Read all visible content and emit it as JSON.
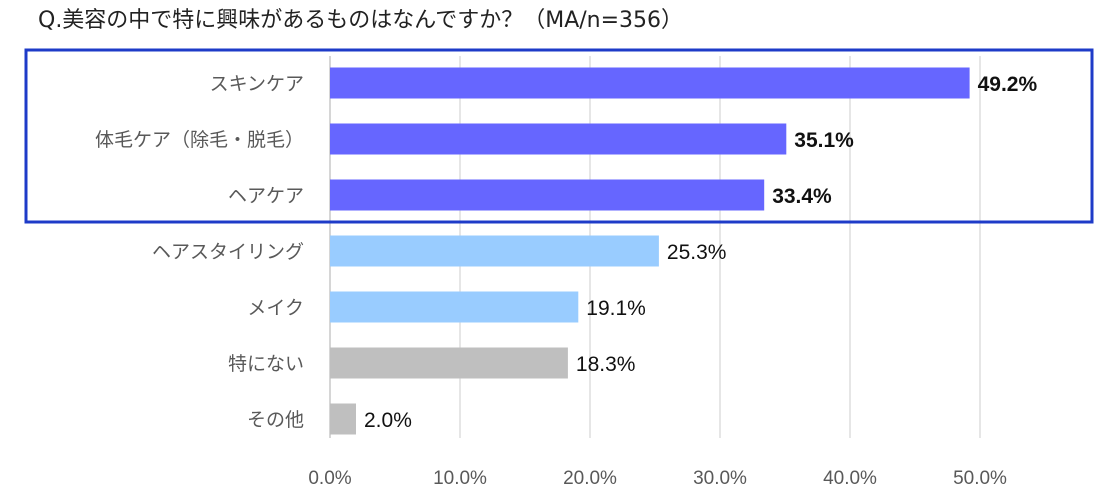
{
  "chart_data": {
    "type": "bar",
    "orientation": "horizontal",
    "title": "Q.美容の中で特に興味があるものはなんですか？（MA/n=356）",
    "categories": [
      "スキンケア",
      "体毛ケア（除毛・脱毛）",
      "ヘアケア",
      "ヘアスタイリング",
      "メイク",
      "特にない",
      "その他"
    ],
    "values": [
      49.2,
      35.1,
      33.4,
      25.3,
      19.1,
      18.3,
      2.0
    ],
    "value_labels": [
      "49.2%",
      "35.1%",
      "33.4%",
      "25.3%",
      "19.1%",
      "18.3%",
      "2.0%"
    ],
    "bar_colors": [
      "#6666ff",
      "#6666ff",
      "#6666ff",
      "#99ccff",
      "#99ccff",
      "#bfbfbf",
      "#bfbfbf"
    ],
    "bold_labels": [
      true,
      true,
      true,
      false,
      false,
      false,
      false
    ],
    "xlim": [
      0,
      50
    ],
    "x_ticks": [
      0,
      10,
      20,
      30,
      40,
      50
    ],
    "x_tick_labels": [
      "0.0%",
      "10.0%",
      "20.0%",
      "30.0%",
      "40.0%",
      "50.0%"
    ],
    "grid": "vertical",
    "highlight": {
      "categories": [
        "スキンケア",
        "体毛ケア（除毛・脱毛）",
        "ヘアケア"
      ],
      "border_color": "#1e3bc8"
    },
    "gridline_color": "#d9d9d9",
    "axis_color": "#bfbfbf"
  }
}
